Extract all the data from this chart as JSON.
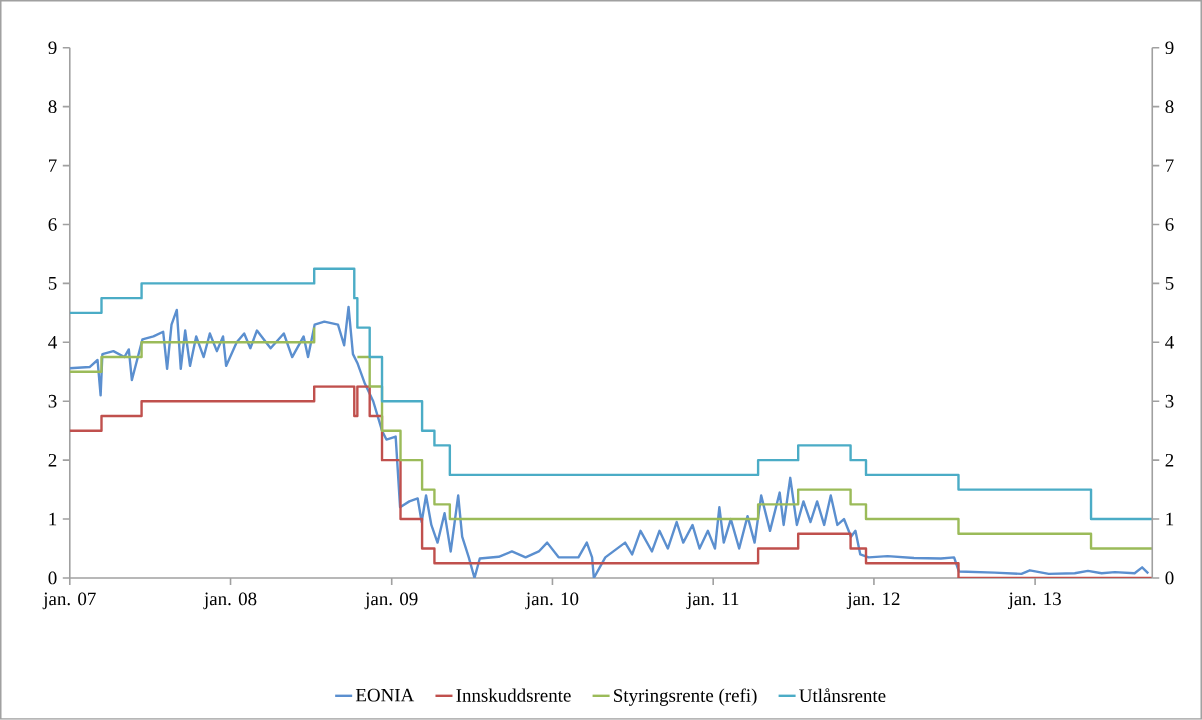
{
  "chart_data": {
    "type": "line",
    "xlim": [
      "2007-01-01",
      "2013-09-24"
    ],
    "xticks": [
      {
        "value": "2007-01-01",
        "label": "jan. 07"
      },
      {
        "value": "2008-01-01",
        "label": "jan. 08"
      },
      {
        "value": "2009-01-01",
        "label": "jan. 09"
      },
      {
        "value": "2010-01-01",
        "label": "jan. 10"
      },
      {
        "value": "2011-01-01",
        "label": "jan. 11"
      },
      {
        "value": "2012-01-01",
        "label": "jan. 12"
      },
      {
        "value": "2013-01-01",
        "label": "jan. 13"
      }
    ],
    "ylim": [
      0,
      9
    ],
    "yticks": [
      0,
      1,
      2,
      3,
      4,
      5,
      6,
      7,
      8,
      9
    ],
    "y2lim": [
      0,
      9
    ],
    "y2ticks": [
      0,
      1,
      2,
      3,
      4,
      5,
      6,
      7,
      8,
      9
    ],
    "legend": "bottom",
    "marker": "none",
    "line_style": "solid",
    "series": [
      {
        "name": "EONIA",
        "color": "#5b8fcf",
        "x": [
          "2007-01-01",
          "2007-02-15",
          "2007-03-05",
          "2007-03-12",
          "2007-03-16",
          "2007-04-10",
          "2007-05-05",
          "2007-05-15",
          "2007-05-22",
          "2007-06-15",
          "2007-07-10",
          "2007-08-01",
          "2007-08-10",
          "2007-08-20",
          "2007-09-01",
          "2007-09-10",
          "2007-09-20",
          "2007-10-01",
          "2007-10-15",
          "2007-11-01",
          "2007-11-15",
          "2007-12-01",
          "2007-12-15",
          "2007-12-22",
          "2008-01-15",
          "2008-02-01",
          "2008-02-15",
          "2008-03-01",
          "2008-04-01",
          "2008-05-01",
          "2008-05-20",
          "2008-06-15",
          "2008-06-25",
          "2008-07-10",
          "2008-08-01",
          "2008-09-01",
          "2008-09-15",
          "2008-09-25",
          "2008-10-05",
          "2008-10-15",
          "2008-11-01",
          "2008-11-20",
          "2008-12-10",
          "2008-12-20",
          "2009-01-10",
          "2009-01-20",
          "2009-02-10",
          "2009-03-01",
          "2009-03-10",
          "2009-03-20",
          "2009-04-01",
          "2009-04-15",
          "2009-05-01",
          "2009-05-15",
          "2009-06-01",
          "2009-06-10",
          "2009-06-25",
          "2009-07-08",
          "2009-07-20",
          "2009-09-01",
          "2009-10-01",
          "2009-11-01",
          "2009-12-01",
          "2009-12-20",
          "2010-01-15",
          "2010-03-01",
          "2010-03-20",
          "2010-04-01",
          "2010-04-05",
          "2010-05-01",
          "2010-06-15",
          "2010-07-01",
          "2010-07-20",
          "2010-08-15",
          "2010-09-01",
          "2010-09-20",
          "2010-10-10",
          "2010-10-25",
          "2010-11-15",
          "2010-12-01",
          "2010-12-20",
          "2011-01-05",
          "2011-01-15",
          "2011-01-25",
          "2011-02-10",
          "2011-03-01",
          "2011-03-20",
          "2011-04-05",
          "2011-04-20",
          "2011-05-10",
          "2011-06-01",
          "2011-06-10",
          "2011-06-25",
          "2011-07-10",
          "2011-07-25",
          "2011-08-10",
          "2011-08-25",
          "2011-09-10",
          "2011-09-25",
          "2011-10-10",
          "2011-10-25",
          "2011-11-10",
          "2011-11-20",
          "2011-12-01",
          "2011-12-20",
          "2012-02-01",
          "2012-04-01",
          "2012-06-01",
          "2012-07-01",
          "2012-07-12",
          "2012-10-01",
          "2012-12-01",
          "2012-12-20",
          "2013-02-01",
          "2013-04-01",
          "2013-05-01",
          "2013-06-01",
          "2013-07-01",
          "2013-08-15",
          "2013-09-01",
          "2013-09-15"
        ],
        "values": [
          3.56,
          3.58,
          3.7,
          3.1,
          3.8,
          3.85,
          3.75,
          3.88,
          3.36,
          4.05,
          4.1,
          4.18,
          3.55,
          4.3,
          4.55,
          3.55,
          4.2,
          3.6,
          4.1,
          3.75,
          4.15,
          3.85,
          4.1,
          3.6,
          4.0,
          4.15,
          3.9,
          4.2,
          3.9,
          4.15,
          3.75,
          4.1,
          3.75,
          4.3,
          4.35,
          4.3,
          3.95,
          4.6,
          3.8,
          3.65,
          3.3,
          3.0,
          2.5,
          2.35,
          2.4,
          1.2,
          1.3,
          1.35,
          0.95,
          1.4,
          0.9,
          0.6,
          1.1,
          0.45,
          1.4,
          0.7,
          0.35,
          0.0,
          0.33,
          0.36,
          0.45,
          0.35,
          0.45,
          0.6,
          0.35,
          0.35,
          0.6,
          0.35,
          0.0,
          0.35,
          0.6,
          0.4,
          0.8,
          0.45,
          0.8,
          0.5,
          0.95,
          0.6,
          0.9,
          0.5,
          0.8,
          0.5,
          1.2,
          0.6,
          1.0,
          0.5,
          1.05,
          0.6,
          1.4,
          0.8,
          1.45,
          0.9,
          1.7,
          0.9,
          1.3,
          0.95,
          1.3,
          0.9,
          1.4,
          0.9,
          1.0,
          0.7,
          0.8,
          0.4,
          0.35,
          0.37,
          0.34,
          0.33,
          0.35,
          0.11,
          0.09,
          0.07,
          0.13,
          0.07,
          0.08,
          0.12,
          0.08,
          0.1,
          0.08,
          0.18,
          0.08
        ]
      },
      {
        "name": "Innskuddsrente",
        "type": "step",
        "color": "#c0504d",
        "x": [
          "2007-01-01",
          "2007-03-14",
          "2007-06-13",
          "2008-07-09",
          "2008-10-08",
          "2008-10-15",
          "2008-11-12",
          "2008-12-10",
          "2009-01-21",
          "2009-03-11",
          "2009-04-08",
          "2011-04-13",
          "2011-07-13",
          "2011-11-09",
          "2011-12-14",
          "2012-07-11",
          "2013-09-24"
        ],
        "values": [
          2.5,
          2.75,
          3.0,
          3.25,
          2.75,
          3.25,
          2.75,
          2.0,
          1.0,
          0.5,
          0.25,
          0.5,
          0.75,
          0.5,
          0.25,
          0.0,
          0.0
        ]
      },
      {
        "name": "Styringsrente (refi)",
        "type": "step",
        "color": "#9bbb59",
        "x": [
          "2007-01-01",
          "2007-03-14",
          "2007-06-13",
          "2008-07-09",
          "2008-10-08",
          "2008-10-15",
          "2008-11-12",
          "2008-12-10",
          "2009-01-21",
          "2009-03-11",
          "2009-04-08",
          "2009-05-13",
          "2011-04-13",
          "2011-07-13",
          "2011-11-09",
          "2011-12-14",
          "2012-07-11",
          "2013-05-08",
          "2013-09-24"
        ],
        "values": [
          3.5,
          3.75,
          4.0,
          4.25,
          null,
          3.75,
          3.25,
          2.5,
          2.0,
          1.5,
          1.25,
          1.0,
          1.25,
          1.5,
          1.25,
          1.0,
          0.75,
          0.5,
          0.5
        ]
      },
      {
        "name": "Utlånsrente",
        "type": "step",
        "color": "#4bacc6",
        "x": [
          "2007-01-01",
          "2007-03-14",
          "2007-06-13",
          "2008-07-09",
          "2008-10-08",
          "2008-10-15",
          "2008-11-12",
          "2008-12-10",
          "2009-03-11",
          "2009-04-08",
          "2009-05-13",
          "2011-04-13",
          "2011-07-13",
          "2011-11-09",
          "2011-12-14",
          "2012-07-11",
          "2013-05-08",
          "2013-09-24"
        ],
        "values": [
          4.5,
          4.75,
          5.0,
          5.25,
          4.75,
          4.25,
          3.75,
          3.0,
          2.5,
          2.25,
          1.75,
          2.0,
          2.25,
          2.0,
          1.75,
          1.5,
          1.0,
          1.0
        ]
      }
    ]
  }
}
